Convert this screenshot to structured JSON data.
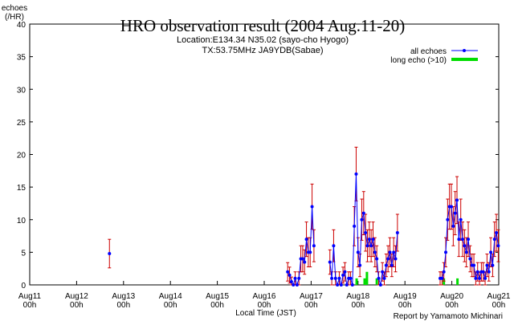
{
  "chart_data": {
    "type": "line",
    "title": "HRO observation result (2004 Aug.11-20)",
    "subtitle_lines": [
      "Location:E134.34 N35.02 (sayo-cho Hyogo)",
      "TX:53.75MHz JA9YDB(Sabae)"
    ],
    "ylabel_lines": [
      "echoes",
      "(/HR)"
    ],
    "xlabel": "Local Time (JST)",
    "credit": "Report by Yamamoto Michinari",
    "ylim": [
      0,
      40
    ],
    "yticks": [
      "0",
      "5",
      "10",
      "15",
      "20",
      "25",
      "30",
      "35",
      "40"
    ],
    "xlim": [
      0,
      10
    ],
    "x_unit": "days since Aug11 00h",
    "xticks": [
      {
        "x": 0,
        "date": "Aug11",
        "hour": "00h"
      },
      {
        "x": 1,
        "date": "Aug12",
        "hour": "00h"
      },
      {
        "x": 2,
        "date": "Aug13",
        "hour": "00h"
      },
      {
        "x": 3,
        "date": "Aug14",
        "hour": "00h"
      },
      {
        "x": 4,
        "date": "Aug15",
        "hour": "00h"
      },
      {
        "x": 5,
        "date": "Aug16",
        "hour": "00h"
      },
      {
        "x": 6,
        "date": "Aug17",
        "hour": "00h"
      },
      {
        "x": 7,
        "date": "Aug18",
        "hour": "00h"
      },
      {
        "x": 8,
        "date": "Aug19",
        "hour": "00h"
      },
      {
        "x": 9,
        "date": "Aug20",
        "hour": "00h"
      },
      {
        "x": 10,
        "date": "Aug21",
        "hour": "00h"
      }
    ],
    "legend_position": "top-right",
    "colors": {
      "all_echoes": "#0000ff",
      "error_bars": "#cc0000",
      "long_echo": "#00dd00"
    },
    "series": [
      {
        "name": "all echoes",
        "style": "line-with-markers-and-error-bars",
        "segments": [
          [
            [
              1.7,
              4.8
            ]
          ],
          [
            [
              5.5,
              2
            ],
            [
              5.54,
              1.5
            ],
            [
              5.58,
              0.5
            ],
            [
              5.62,
              0
            ],
            [
              5.66,
              1
            ],
            [
              5.7,
              0
            ],
            [
              5.74,
              1
            ],
            [
              5.78,
              4
            ],
            [
              5.82,
              4
            ],
            [
              5.86,
              3.5
            ],
            [
              5.9,
              7
            ],
            [
              5.94,
              5
            ],
            [
              5.98,
              5
            ],
            [
              6.02,
              12
            ],
            [
              6.06,
              6
            ]
          ],
          [
            [
              6.4,
              3.5
            ],
            [
              6.44,
              1
            ],
            [
              6.48,
              6
            ],
            [
              6.52,
              1
            ],
            [
              6.56,
              0
            ],
            [
              6.6,
              1
            ],
            [
              6.64,
              0
            ],
            [
              6.68,
              1.5
            ],
            [
              6.72,
              2
            ],
            [
              6.76,
              0
            ],
            [
              6.8,
              1
            ],
            [
              6.84,
              1
            ],
            [
              6.88,
              0
            ],
            [
              6.92,
              9
            ],
            [
              6.96,
              17
            ],
            [
              7.0,
              5
            ],
            [
              7.04,
              3
            ],
            [
              7.08,
              10
            ],
            [
              7.12,
              11
            ],
            [
              7.16,
              8
            ],
            [
              7.2,
              6
            ],
            [
              7.24,
              7
            ],
            [
              7.28,
              6
            ],
            [
              7.32,
              7
            ],
            [
              7.36,
              5
            ],
            [
              7.4,
              4
            ],
            [
              7.44,
              1
            ],
            [
              7.48,
              0
            ],
            [
              7.52,
              2
            ],
            [
              7.56,
              1
            ],
            [
              7.6,
              3
            ],
            [
              7.64,
              4
            ],
            [
              7.68,
              5
            ],
            [
              7.72,
              3
            ],
            [
              7.76,
              5
            ],
            [
              7.8,
              4
            ],
            [
              7.84,
              8
            ]
          ],
          [
            [
              8.75,
              1
            ],
            [
              8.79,
              1
            ],
            [
              8.83,
              2
            ],
            [
              8.87,
              5
            ],
            [
              8.91,
              10
            ],
            [
              8.95,
              12
            ],
            [
              8.99,
              12
            ],
            [
              9.03,
              9
            ],
            [
              9.07,
              11
            ],
            [
              9.11,
              13
            ],
            [
              9.15,
              7
            ],
            [
              9.19,
              10
            ],
            [
              9.23,
              7
            ],
            [
              9.27,
              6
            ],
            [
              9.31,
              5
            ],
            [
              9.35,
              7
            ],
            [
              9.39,
              4
            ],
            [
              9.43,
              3
            ],
            [
              9.47,
              3
            ],
            [
              9.51,
              1
            ],
            [
              9.55,
              2
            ],
            [
              9.59,
              1
            ],
            [
              9.63,
              2
            ],
            [
              9.67,
              2
            ],
            [
              9.71,
              1
            ],
            [
              9.75,
              3
            ],
            [
              9.79,
              2
            ],
            [
              9.83,
              5
            ],
            [
              9.87,
              3
            ],
            [
              9.91,
              7
            ],
            [
              9.95,
              8
            ],
            [
              9.99,
              6
            ]
          ]
        ]
      },
      {
        "name": "long echo (>10)",
        "style": "bars",
        "points": [
          [
            6.97,
            1
          ],
          [
            7.14,
            1
          ],
          [
            7.19,
            2
          ],
          [
            7.4,
            1
          ],
          [
            8.83,
            1
          ],
          [
            9.12,
            1
          ]
        ]
      }
    ]
  }
}
